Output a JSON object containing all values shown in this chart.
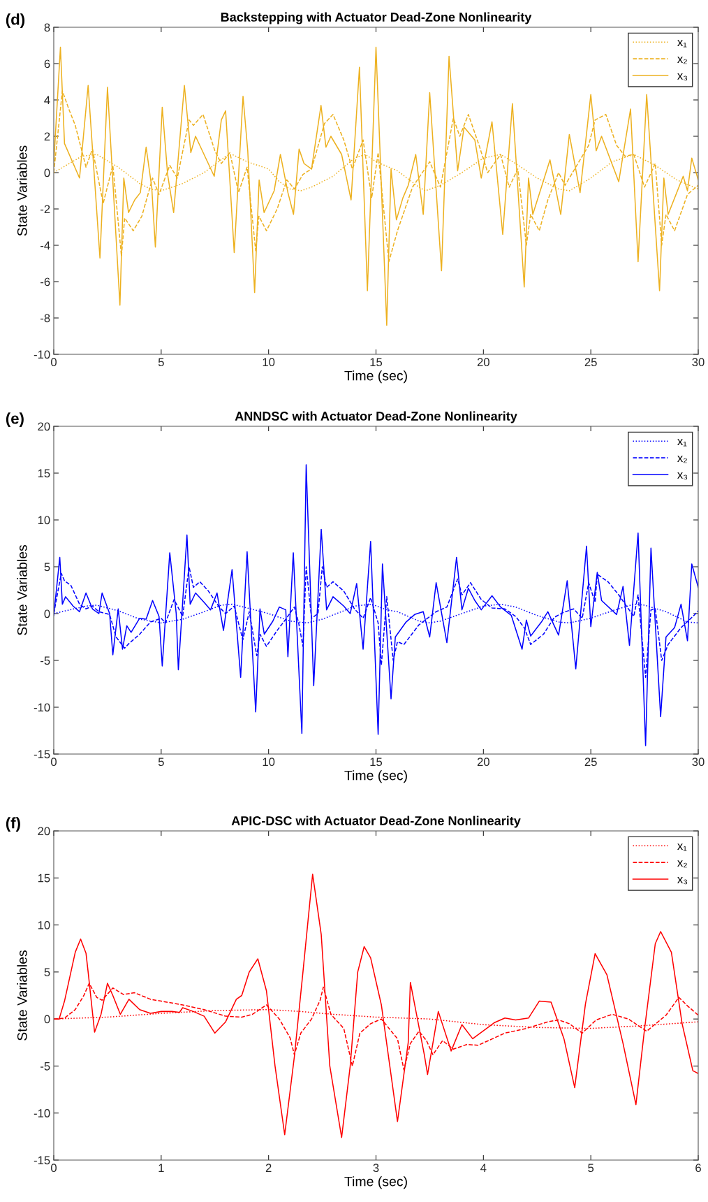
{
  "chart_data": [
    {
      "type": "line",
      "title": "Backstepping with Actuator Dead-Zone Nonlinearity",
      "xlabel": "Time (sec)",
      "ylabel": "State Variables",
      "annotations": [
        "(d)"
      ],
      "xlim": [
        0,
        30
      ],
      "xticks": [
        0,
        5,
        10,
        15,
        20,
        25,
        30
      ],
      "ylim": [
        -10,
        8
      ],
      "yticks": [
        -10,
        -8,
        -6,
        -4,
        -2,
        0,
        2,
        4,
        6,
        8
      ],
      "legend": "top right",
      "grid": false,
      "series": [
        {
          "name": "x₁",
          "color": "#edb120",
          "line_style": "dotted",
          "x": [
            0,
            1.3,
            2,
            3,
            4,
            4.5,
            5,
            6,
            7,
            8,
            8.3,
            9,
            10,
            10.5,
            11,
            11.5,
            12,
            13,
            14,
            14.5,
            15,
            16,
            17,
            17.3,
            18,
            19,
            20,
            20.8,
            21.5,
            22.5,
            23.5,
            24,
            25,
            26,
            27,
            28,
            29,
            30
          ],
          "values": [
            0,
            0.9,
            1,
            0.3,
            -0.6,
            -0.9,
            -1,
            -0.6,
            0,
            0.9,
            1,
            0.6,
            0.2,
            -0.5,
            -0.9,
            -1,
            -0.8,
            -0.2,
            0.8,
            1,
            0.6,
            0.1,
            -0.8,
            -1,
            -0.7,
            0,
            0.8,
            1,
            0.5,
            -0.3,
            -0.9,
            -1,
            -0.3,
            0.6,
            1,
            0.4,
            -0.4,
            -0.9
          ]
        },
        {
          "name": "x₂",
          "color": "#edb120",
          "line_style": "dashed",
          "x": [
            0,
            0.4,
            0.7,
            1,
            1.35,
            1.5,
            1.8,
            2.3,
            2.75,
            3.15,
            3.3,
            3.7,
            4.1,
            4.6,
            4.9,
            5.4,
            5.75,
            6.3,
            6.5,
            6.95,
            7.5,
            7.8,
            8.2,
            8.6,
            9,
            9.4,
            9.55,
            9.9,
            10.4,
            10.85,
            11.2,
            11.6,
            12,
            12.6,
            13,
            13.5,
            13.9,
            14.4,
            14.8,
            15.1,
            15.6,
            16,
            16.7,
            17.5,
            18,
            18.6,
            18.9,
            19.3,
            19.8,
            20.2,
            20.8,
            21.2,
            21.6,
            22,
            22.2,
            22.6,
            23,
            23.5,
            23.8,
            24.3,
            24.9,
            25.2,
            25.7,
            26.2,
            26.6,
            27,
            27.5,
            28,
            28.3,
            28.5,
            28.9,
            29.5,
            30
          ],
          "values": [
            0,
            4.5,
            3.5,
            2.6,
            1,
            0.3,
            1.3,
            -1.7,
            0.4,
            -4.6,
            -2.5,
            -3.2,
            -2.4,
            -0.3,
            -1.2,
            0.4,
            -0.3,
            2.9,
            2.6,
            3.2,
            1.2,
            0.5,
            1.1,
            -1.1,
            0.3,
            -4.3,
            -2.4,
            -3.2,
            -2,
            -0.4,
            -0.9,
            -0.1,
            0.2,
            2.7,
            3.2,
            1.8,
            0.2,
            1.8,
            -1.4,
            1.1,
            -4.9,
            -3.2,
            -0.8,
            0.6,
            -0.8,
            3,
            2,
            3.2,
            1.5,
            0,
            1,
            -0.8,
            0.2,
            -4,
            -2.3,
            -3.2,
            -1.5,
            0,
            -0.7,
            0.3,
            1.5,
            2.9,
            3.2,
            1.5,
            0.9,
            1,
            -0.8,
            0.5,
            -4,
            -2.3,
            -3.2,
            -1.2,
            -0.7
          ]
        },
        {
          "name": "x₃",
          "color": "#edb120",
          "line_style": "solid",
          "x": [
            0,
            0.31,
            0.5,
            1.2,
            1.6,
            2.15,
            2.5,
            3.08,
            3.26,
            3.48,
            3.77,
            4.03,
            4.3,
            4.56,
            4.73,
            5.05,
            5.3,
            5.58,
            6.08,
            6.38,
            6.6,
            7.47,
            7.8,
            8,
            8.4,
            8.81,
            9.03,
            9.35,
            9.56,
            9.79,
            10.26,
            10.55,
            10.9,
            11.16,
            11.42,
            11.65,
            12,
            12.44,
            12.67,
            12.9,
            13.4,
            13.84,
            14.23,
            14.6,
            15,
            15.5,
            15.7,
            15.95,
            16.25,
            16.5,
            16.85,
            17.2,
            17.5,
            18.05,
            18.4,
            18.8,
            19.1,
            19.6,
            19.9,
            20.4,
            20.9,
            21.35,
            21.9,
            22.1,
            22.3,
            23.1,
            23.6,
            24,
            24.5,
            25,
            25.25,
            25.5,
            26.3,
            26.85,
            27.2,
            27.6,
            28.2,
            28.4,
            28.6,
            29.3,
            29.5,
            29.7,
            30
          ],
          "values": [
            0.5,
            6.9,
            1.6,
            -0.3,
            4.8,
            -4.7,
            4.7,
            -7.3,
            -0.3,
            -2.2,
            -1.5,
            -1.1,
            1.4,
            -0.8,
            -4.1,
            3.6,
            -0.1,
            -2.2,
            4.8,
            1.1,
            2,
            -0.2,
            2.9,
            3.4,
            -4.4,
            4.2,
            1.2,
            -6.6,
            -0.4,
            -2.2,
            -1,
            1,
            -1.1,
            -2.3,
            1.3,
            0.5,
            0.2,
            3.7,
            1.4,
            2,
            1,
            -1.5,
            5.8,
            -6.5,
            6.9,
            -8.4,
            0.2,
            -2.6,
            -1.4,
            -0.7,
            1,
            -2.3,
            4.4,
            -5.4,
            6.4,
            0.1,
            2.5,
            1.8,
            -0.3,
            2.8,
            -3.4,
            3.8,
            -6.3,
            -0.3,
            -2.3,
            0.7,
            -2.3,
            2.1,
            -1.1,
            4.3,
            1.2,
            2,
            -0.5,
            3.5,
            -4.9,
            4.3,
            -6.5,
            -0.3,
            -2.3,
            -0.2,
            -1,
            0.8,
            -0.4
          ]
        }
      ]
    },
    {
      "type": "line",
      "title": "ANNDSC with Actuator Dead-Zone Nonlinearity",
      "xlabel": "Time (sec)",
      "ylabel": "State Variables",
      "annotations": [
        "(e)"
      ],
      "xlim": [
        0,
        30
      ],
      "xticks": [
        0,
        5,
        10,
        15,
        20,
        25,
        30
      ],
      "ylim": [
        -15,
        20
      ],
      "yticks": [
        -15,
        -10,
        -5,
        0,
        5,
        10,
        15,
        20
      ],
      "legend": "top right",
      "grid": false,
      "series": [
        {
          "name": "x₁",
          "color": "#0000ff",
          "line_style": "dotted",
          "x": [
            0,
            1.5,
            2,
            3,
            4,
            5,
            6,
            7,
            7.8,
            8.3,
            9,
            10,
            11,
            11.8,
            12.5,
            13.5,
            14,
            14.8,
            15.5,
            16,
            17,
            17.5,
            18,
            19,
            20,
            20.8,
            21.5,
            22.5,
            23.5,
            24,
            25,
            26,
            27,
            27.5,
            28.5,
            29.5,
            30
          ],
          "values": [
            0,
            0.8,
            0.9,
            0.3,
            -0.6,
            -1,
            -0.6,
            0.2,
            0.9,
            1,
            0.6,
            0,
            -0.8,
            -1,
            -0.6,
            0.3,
            0.8,
            1,
            0.4,
            0.2,
            -0.8,
            -1,
            -0.8,
            0,
            0.8,
            1,
            0.7,
            -0.2,
            -0.9,
            -1,
            -0.5,
            0.3,
            1,
            0.9,
            0.2,
            -0.9,
            -1
          ]
        },
        {
          "name": "x₂",
          "color": "#0000ff",
          "line_style": "dashed",
          "x": [
            0,
            0.35,
            0.5,
            0.8,
            1.2,
            1.5,
            1.8,
            2.1,
            2.6,
            2.9,
            3.3,
            3.5,
            4,
            4.5,
            5,
            5.2,
            5.6,
            6,
            6.3,
            6.5,
            6.8,
            7.2,
            7.7,
            8,
            8.4,
            8.8,
            9.1,
            9.45,
            9.6,
            9.9,
            10.4,
            10.8,
            11.2,
            11.4,
            11.6,
            11.75,
            12,
            12.3,
            12.5,
            12.7,
            13,
            13.5,
            14,
            14.4,
            14.75,
            15.1,
            15.25,
            15.5,
            15.8,
            16,
            16.3,
            17,
            17.8,
            18.3,
            18.8,
            19,
            19.4,
            19.9,
            20.4,
            21,
            21.5,
            21.9,
            22.2,
            22.8,
            23.3,
            23.7,
            24.2,
            24.6,
            24.9,
            25.2,
            25.3,
            25.8,
            26.3,
            26.6,
            27,
            27.2,
            27.55,
            27.8,
            28,
            28.3,
            28.6,
            29.2,
            29.8,
            30
          ],
          "values": [
            0,
            4.3,
            3.5,
            3,
            1,
            0.5,
            0.8,
            0.2,
            -0.1,
            -2.5,
            -3.7,
            -3.2,
            -2.2,
            -0.9,
            -0.5,
            -1,
            1.5,
            -0.3,
            5,
            2.8,
            3.4,
            2.4,
            0.7,
            0,
            0.8,
            -2.8,
            0.2,
            -4.5,
            -2.2,
            -3.5,
            -1.8,
            -0.6,
            0.7,
            -1,
            -3.5,
            5,
            -0.5,
            0,
            5,
            2.8,
            3.4,
            2.4,
            0.5,
            -0.5,
            1.7,
            -1,
            -5.5,
            1.8,
            -5,
            -3,
            -3.3,
            -1.2,
            0.2,
            0.7,
            3.7,
            2,
            3.3,
            1.5,
            0.6,
            0.5,
            -0.3,
            -1.5,
            -3.3,
            -2.2,
            -0.4,
            0.1,
            0.5,
            -0.5,
            3.3,
            1.2,
            4.2,
            3.4,
            2,
            1,
            -0.3,
            2,
            -6.8,
            0.4,
            0.5,
            -5,
            -3.3,
            -1.5,
            -0.2,
            0.3
          ]
        },
        {
          "name": "x₃",
          "color": "#0000ff",
          "line_style": "solid",
          "x": [
            0,
            0.28,
            0.4,
            0.55,
            0.9,
            1.2,
            1.5,
            1.8,
            2.1,
            2.25,
            2.6,
            2.75,
            3,
            3.2,
            3.4,
            3.6,
            4,
            4.3,
            4.6,
            4.9,
            5.05,
            5.4,
            5.7,
            5.8,
            6.2,
            6.35,
            6.6,
            7,
            7.3,
            7.6,
            7.9,
            8.3,
            8.7,
            9,
            9.4,
            9.6,
            9.8,
            10.2,
            10.5,
            10.8,
            10.9,
            11.15,
            11.55,
            11.75,
            12.1,
            12.45,
            12.7,
            13,
            13.5,
            13.8,
            14.1,
            14.4,
            14.75,
            15.1,
            15.3,
            15.7,
            15.9,
            16.4,
            16.8,
            17.2,
            17.5,
            17.8,
            18.3,
            18.75,
            19,
            19.3,
            19.6,
            19.9,
            20.4,
            20.8,
            21.3,
            21.8,
            22,
            22.2,
            22.7,
            23,
            23.5,
            23.9,
            24.3,
            24.8,
            25,
            25.3,
            25.5,
            26.2,
            26.5,
            26.8,
            27.2,
            27.55,
            27.8,
            28.25,
            28.5,
            28.9,
            29.2,
            29.5,
            29.7,
            30
          ],
          "values": [
            -0.2,
            6,
            1,
            1.8,
            0.8,
            0.2,
            2.2,
            0.5,
            0,
            2.2,
            0,
            -4.4,
            0.5,
            -3.8,
            -1.3,
            -2,
            -0.5,
            -0.6,
            1.4,
            -0.3,
            -5.6,
            6.5,
            0,
            -6,
            8.4,
            1,
            2.2,
            1.2,
            0.4,
            2.2,
            -1.8,
            4.7,
            -6.8,
            6.6,
            -10.5,
            0.5,
            -2.2,
            -0.8,
            0.7,
            0.4,
            -4.6,
            6.5,
            -12.8,
            15.9,
            -7.7,
            9,
            0.4,
            1.8,
            0.8,
            0,
            3.2,
            -3.8,
            7.7,
            -12.9,
            5.3,
            -9.1,
            -2.5,
            -0.9,
            -0.1,
            0.2,
            -2.5,
            3.3,
            -3.1,
            6,
            0.4,
            2.7,
            1.4,
            0.4,
            1.9,
            0.7,
            -0.2,
            -3.8,
            -0.7,
            -2.4,
            -0.9,
            0.2,
            -2.3,
            3.5,
            -5.9,
            7.2,
            -1.4,
            4.4,
            1.4,
            -0.1,
            2.9,
            -3.4,
            8.6,
            -14.1,
            7,
            -11,
            -2.5,
            -1.5,
            1,
            -2.9,
            5.3,
            2.8
          ]
        }
      ]
    },
    {
      "type": "line",
      "title": "APIC-DSC with Actuator Dead-Zone Nonlinearity",
      "xlabel": "Time (sec)",
      "ylabel": "State Variables",
      "annotations": [
        "(f)"
      ],
      "xlim": [
        0,
        6
      ],
      "xticks": [
        0,
        1,
        2,
        3,
        4,
        5,
        6
      ],
      "ylim": [
        -15,
        20
      ],
      "yticks": [
        -15,
        -10,
        -5,
        0,
        5,
        10,
        15,
        20
      ],
      "legend": "top right",
      "grid": false,
      "series": [
        {
          "name": "x₁",
          "color": "#ff0000",
          "line_style": "dotted",
          "x": [
            0,
            0.5,
            1,
            1.5,
            2,
            2.3,
            2.6,
            3,
            3.5,
            4,
            4.5,
            5,
            5.5,
            6
          ],
          "values": [
            0,
            0.2,
            0.6,
            0.9,
            1,
            0.8,
            0.5,
            0.2,
            0,
            -0.6,
            -0.9,
            -1,
            -0.7,
            -0.3
          ]
        },
        {
          "name": "x₂",
          "color": "#ff0000",
          "line_style": "dashed",
          "x": [
            0,
            0.1,
            0.2,
            0.28,
            0.33,
            0.4,
            0.45,
            0.55,
            0.65,
            0.75,
            0.9,
            1,
            1.2,
            1.4,
            1.6,
            1.75,
            1.85,
            1.98,
            2.1,
            2.2,
            2.24,
            2.3,
            2.4,
            2.48,
            2.51,
            2.58,
            2.7,
            2.78,
            2.85,
            2.95,
            3.05,
            3.2,
            3.26,
            3.32,
            3.4,
            3.47,
            3.53,
            3.62,
            3.72,
            3.85,
            3.95,
            4.2,
            4.4,
            4.6,
            4.7,
            4.8,
            4.92,
            5.05,
            5.2,
            5.35,
            5.52,
            5.7,
            5.82,
            5.9,
            6
          ],
          "values": [
            0,
            0.1,
            1,
            2.5,
            3.8,
            2.3,
            2,
            3.3,
            2.6,
            2.8,
            2.1,
            1.9,
            1.5,
            1,
            0.3,
            0.2,
            0.5,
            1.5,
            0,
            -2,
            -3.8,
            -1.5,
            0,
            2,
            3.4,
            0.5,
            -1,
            -5,
            -1.5,
            -0.5,
            0,
            -2.1,
            -5.4,
            -2.6,
            -1.3,
            -2.3,
            -3.8,
            -2.3,
            -3.2,
            -2.7,
            -2.8,
            -1.5,
            -1,
            -0.3,
            -0.1,
            -0.5,
            -1.5,
            -0.1,
            0.5,
            0,
            -1.3,
            0.4,
            2.3,
            1.4,
            0.4
          ]
        },
        {
          "name": "x₃",
          "color": "#ff0000",
          "line_style": "solid",
          "x": [
            0,
            0.05,
            0.1,
            0.2,
            0.25,
            0.3,
            0.32,
            0.38,
            0.44,
            0.5,
            0.55,
            0.62,
            0.7,
            0.8,
            0.9,
            1,
            1.1,
            1.17,
            1.2,
            1.3,
            1.4,
            1.5,
            1.6,
            1.7,
            1.75,
            1.82,
            1.9,
            1.98,
            2.06,
            2.15,
            2.24,
            2.32,
            2.41,
            2.49,
            2.57,
            2.68,
            2.76,
            2.83,
            2.89,
            2.95,
            3.05,
            3.2,
            3.3,
            3.32,
            3.45,
            3.48,
            3.58,
            3.7,
            3.8,
            3.9,
            4.1,
            4.2,
            4.3,
            4.42,
            4.52,
            4.63,
            4.75,
            4.85,
            4.95,
            5.04,
            5.15,
            5.3,
            5.42,
            5.5,
            5.6,
            5.65,
            5.75,
            5.85,
            5.95,
            6
          ],
          "values": [
            0,
            0,
            1.9,
            7.1,
            8.5,
            7,
            5,
            -1.4,
            0.5,
            3.8,
            2.5,
            0.5,
            2.1,
            1,
            0.6,
            0.8,
            0.8,
            0.7,
            1.2,
            0.8,
            0.3,
            -1.5,
            -0.3,
            2.1,
            2.5,
            5,
            6.4,
            3,
            -5,
            -12.3,
            -4,
            5,
            15.4,
            9,
            -5,
            -12.6,
            -5,
            5,
            7.7,
            6.5,
            1.5,
            -10.9,
            -2.5,
            3.9,
            -3.8,
            -5.9,
            0.8,
            -3.4,
            -0.6,
            -2.1,
            -0.4,
            0.1,
            -0.1,
            0.1,
            1.9,
            1.8,
            -2.1,
            -7.3,
            1.6,
            6.95,
            4.7,
            -2.6,
            -9.1,
            -1.1,
            8,
            9.3,
            7.1,
            -0.5,
            -5.5,
            -5.8
          ]
        }
      ]
    }
  ]
}
